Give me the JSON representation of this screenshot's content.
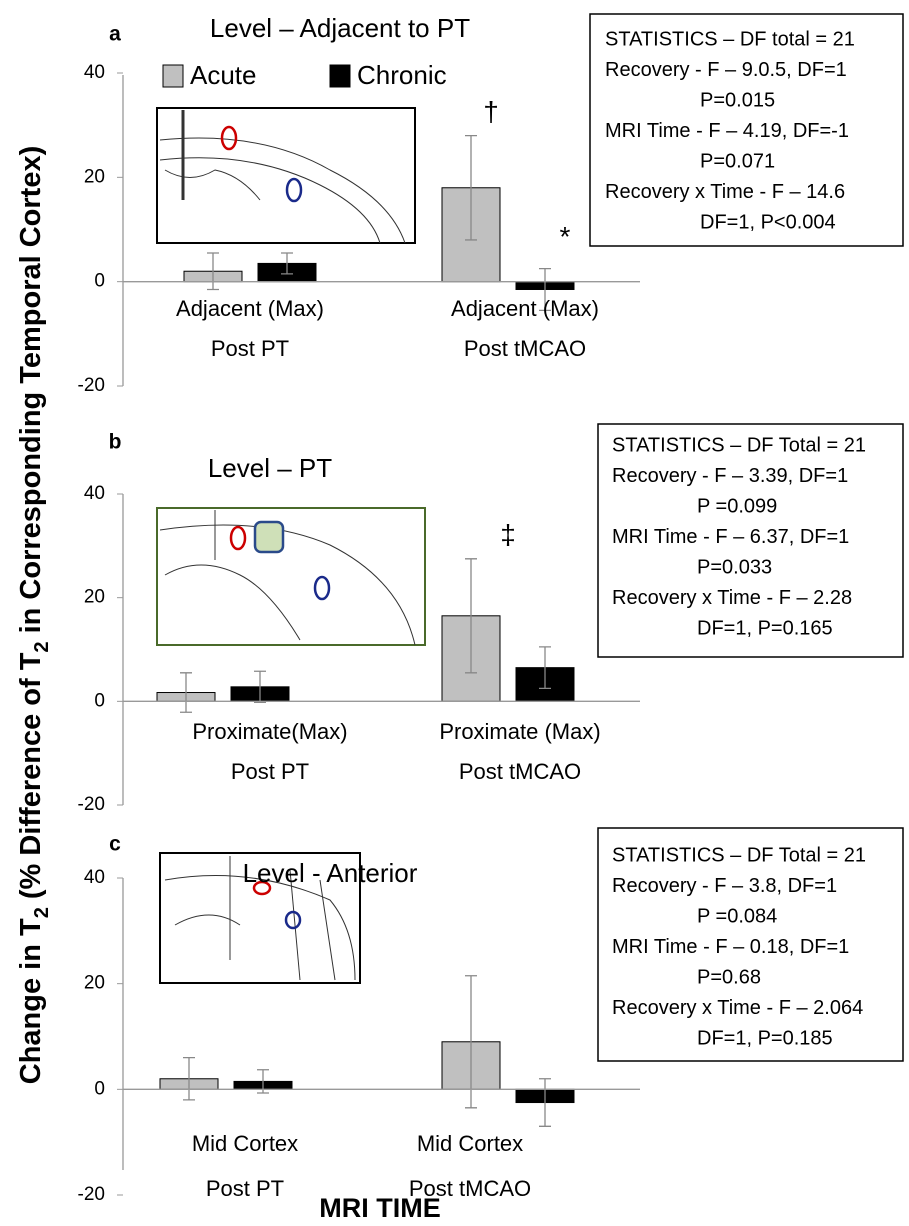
{
  "y_label": [
    "Change in T",
    "2",
    " (% Difference of T",
    "2",
    " in Corresponding Temporal Cortex)"
  ],
  "x_label": "MRI TIME",
  "chart_data": [
    {
      "type": "bar",
      "panel": "a",
      "title": "Level – Adjacent to PT",
      "categories": [
        "Adjacent (Max)",
        "Adjacent (Max)"
      ],
      "groups": [
        "Post PT",
        "Post tMCAO"
      ],
      "series": [
        {
          "name": "Acute",
          "color": "#c0c0c0",
          "values": [
            2,
            18
          ],
          "errors": [
            3.5,
            10
          ]
        },
        {
          "name": "Chronic",
          "color": "#000000",
          "values": [
            3.5,
            -1.5
          ],
          "errors": [
            2,
            4
          ]
        }
      ],
      "ylim": [
        -20,
        40
      ],
      "yticks": [
        -20,
        0,
        20,
        40
      ],
      "legend": true,
      "annotations": [
        {
          "text": "†",
          "series": 0,
          "category": 1
        },
        {
          "text": "*",
          "series": 1,
          "category": 1
        }
      ],
      "statistics": [
        "STATISTICS – DF total = 21",
        "Recovery - F – 9.0.5, DF=1",
        "P=0.015",
        "MRI Time - F – 4.19, DF=-1",
        "P=0.071",
        "Recovery x Time - F – 14.6",
        "DF=1, P<0.004"
      ]
    },
    {
      "type": "bar",
      "panel": "b",
      "title": "Level – PT",
      "categories": [
        "Proximate(Max)",
        "Proximate (Max)"
      ],
      "groups": [
        "Post PT",
        "Post tMCAO"
      ],
      "series": [
        {
          "color": "#c0c0c0",
          "values": [
            1.7,
            16.5
          ],
          "errors": [
            3.8,
            11
          ]
        },
        {
          "color": "#000000",
          "values": [
            2.8,
            6.5
          ],
          "errors": [
            3,
            4
          ]
        }
      ],
      "ylim": [
        -20,
        40
      ],
      "yticks": [
        -20,
        0,
        20,
        40
      ],
      "legend": false,
      "annotations": [
        {
          "text": "‡",
          "series": 0,
          "category": 1
        }
      ],
      "statistics": [
        "STATISTICS – DF Total = 21",
        "Recovery - F – 3.39, DF=1",
        "P =0.099",
        "MRI Time - F – 6.37, DF=1",
        "P=0.033",
        "Recovery x Time - F – 2.28",
        "DF=1, P=0.165"
      ]
    },
    {
      "type": "bar",
      "panel": "c",
      "title": "Level - Anterior",
      "categories": [
        "Mid Cortex",
        "Mid Cortex"
      ],
      "groups": [
        "Post PT",
        "Post tMCAO"
      ],
      "series": [
        {
          "color": "#c0c0c0",
          "values": [
            2,
            9
          ],
          "errors": [
            4,
            12.5
          ]
        },
        {
          "color": "#000000",
          "values": [
            1.5,
            -2.5
          ],
          "errors": [
            2.2,
            4.5
          ]
        }
      ],
      "ylim": [
        -20,
        40
      ],
      "yticks": [
        -20,
        0,
        20,
        40
      ],
      "legend": false,
      "annotations": [],
      "statistics": [
        "STATISTICS – DF Total = 21",
        "Recovery - F – 3.8, DF=1",
        "P =0.084",
        "MRI Time - F – 0.18, DF=1",
        "P=0.68",
        "Recovery x Time - F – 2.064",
        "DF=1, P=0.185"
      ]
    }
  ]
}
